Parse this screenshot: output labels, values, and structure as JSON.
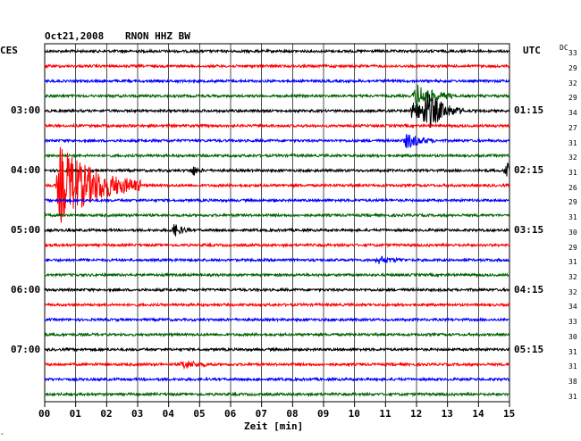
{
  "header": {
    "title_date": "Oct21,2008",
    "title_station": "RNON HHZ BW",
    "left_tz": "CES",
    "right_tz": "UTC",
    "dc_label": "DC"
  },
  "footer": {
    "xlabel": "Zeit [min]",
    "corner_mark": "‸"
  },
  "colors": {
    "trace_cycle": [
      "#000000",
      "#ff0000",
      "#0000ff",
      "#006400"
    ],
    "grid": "#000000"
  },
  "chart_data": {
    "type": "line",
    "title": "Oct21,2008   RNON HHZ BW",
    "xlabel": "Zeit [min]",
    "x_ticks": [
      "00",
      "01",
      "02",
      "03",
      "04",
      "05",
      "06",
      "07",
      "08",
      "09",
      "10",
      "11",
      "12",
      "13",
      "14",
      "15"
    ],
    "xlim": [
      0,
      15
    ],
    "grid": true,
    "rows": 24,
    "row_minutes": 15,
    "left_time_labels": [
      {
        "row": 4,
        "label": "03:00"
      },
      {
        "row": 8,
        "label": "04:00"
      },
      {
        "row": 12,
        "label": "05:00"
      },
      {
        "row": 16,
        "label": "06:00"
      },
      {
        "row": 20,
        "label": "07:00"
      }
    ],
    "right_time_labels": [
      {
        "row": 4,
        "label": "01:15"
      },
      {
        "row": 8,
        "label": "02:15"
      },
      {
        "row": 12,
        "label": "03:15"
      },
      {
        "row": 16,
        "label": "04:15"
      },
      {
        "row": 20,
        "label": "05:15"
      }
    ],
    "dc_offsets": [
      33,
      29,
      32,
      29,
      34,
      27,
      31,
      32,
      31,
      26,
      29,
      31,
      30,
      29,
      31,
      32,
      32,
      34,
      33,
      30,
      31,
      31,
      38,
      31
    ],
    "events": [
      {
        "row": 3,
        "minute": 12.0,
        "amplitude": 0.85,
        "duration_min": 1.2
      },
      {
        "row": 4,
        "minute": 11.9,
        "amplitude": 0.7,
        "duration_min": 1.0
      },
      {
        "row": 4,
        "minute": 12.3,
        "amplitude": 1.25,
        "duration_min": 1.2
      },
      {
        "row": 6,
        "minute": 11.7,
        "amplitude": 0.55,
        "duration_min": 0.9
      },
      {
        "row": 8,
        "minute": 4.8,
        "amplitude": 0.35,
        "duration_min": 0.3
      },
      {
        "row": 8,
        "minute": 14.95,
        "amplitude": 0.9,
        "duration_min": 0.1
      },
      {
        "row": 9,
        "minute": 0.5,
        "amplitude": 2.9,
        "duration_min": 2.6
      },
      {
        "row": 12,
        "minute": 4.2,
        "amplitude": 0.45,
        "duration_min": 0.5
      },
      {
        "row": 14,
        "minute": 10.8,
        "amplitude": 0.25,
        "duration_min": 0.9
      },
      {
        "row": 21,
        "minute": 4.5,
        "amplitude": 0.3,
        "duration_min": 0.9
      }
    ]
  }
}
